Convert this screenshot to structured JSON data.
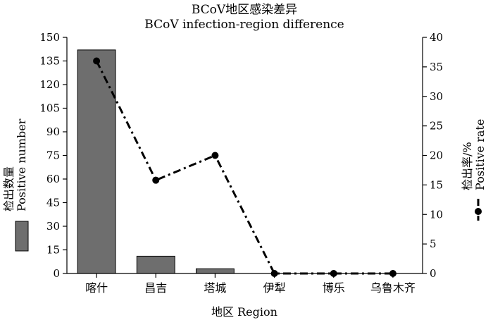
{
  "chart_data": {
    "type": "bar",
    "title": "BCoV地区感染差异",
    "subtitle": "BCoV infection-region difference",
    "categories": [
      "喀什",
      "昌吉",
      "塔城",
      "伊犁",
      "博乐",
      "乌鲁木齐"
    ],
    "xlabel": "地区 Region",
    "ylabel_left_cn": "检出数量",
    "ylabel_left_en": "Positive number",
    "ylabel_right_cn": "检出率/%",
    "ylabel_right_en": "Positive rate",
    "ylim_left": [
      0,
      150
    ],
    "ylim_right": [
      0,
      40
    ],
    "yticks_left": [
      "0",
      "15",
      "30",
      "45",
      "60",
      "75",
      "90",
      "105",
      "120",
      "135",
      "150"
    ],
    "yticks_right": [
      "0",
      "5",
      "10",
      "15",
      "20",
      "25",
      "30",
      "35",
      "40"
    ],
    "series": [
      {
        "name": "Positive number",
        "type": "bar",
        "axis": "left",
        "values": [
          142,
          11,
          3,
          0,
          0,
          0
        ],
        "color": "#6e6e6e"
      },
      {
        "name": "Positive rate",
        "type": "line",
        "axis": "right",
        "values": [
          36,
          15.8,
          20,
          0,
          0,
          0
        ],
        "color": "#000000"
      }
    ],
    "grid": false
  }
}
